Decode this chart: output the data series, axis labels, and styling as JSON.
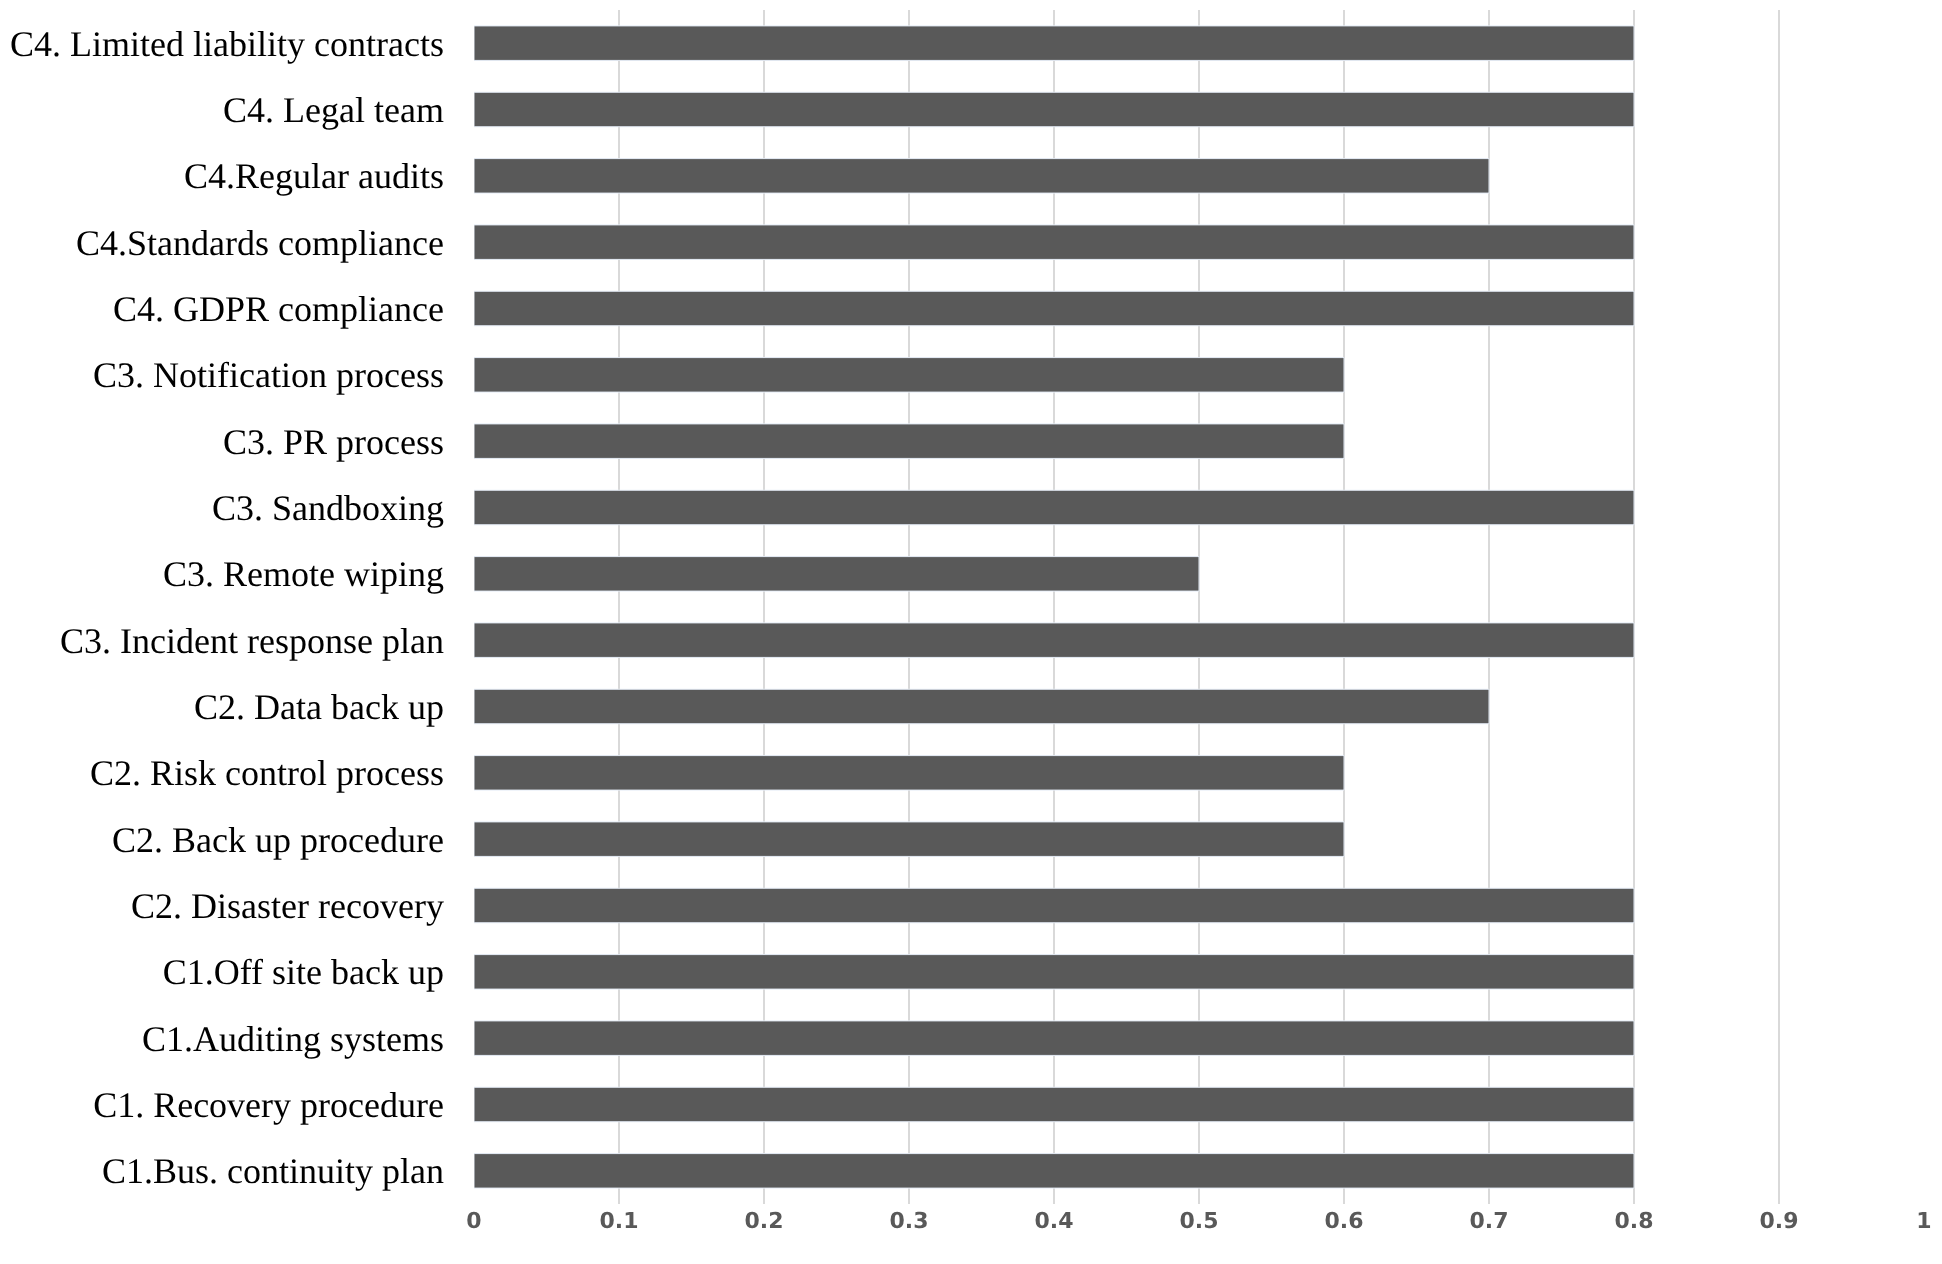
{
  "chart_data": {
    "type": "bar",
    "orientation": "horizontal",
    "categories": [
      "C4. Limited liability contracts",
      "C4. Legal team",
      "C4.Regular audits",
      "C4.Standards compliance",
      "C4. GDPR compliance",
      "C3. Notification process",
      "C3. PR process",
      "C3. Sandboxing",
      "C3. Remote wiping",
      "C3. Incident response plan",
      "C2. Data back up",
      "C2. Risk control process",
      "C2. Back up procedure",
      "C2. Disaster recovery",
      "C1.Off site back up",
      "C1.Auditing systems",
      "C1. Recovery procedure",
      "C1.Bus. continuity plan"
    ],
    "values": [
      0.8,
      0.8,
      0.7,
      0.8,
      0.8,
      0.6,
      0.6,
      0.8,
      0.5,
      0.8,
      0.7,
      0.6,
      0.6,
      0.8,
      0.8,
      0.8,
      0.8,
      0.8
    ],
    "color": "#595959",
    "xlim": [
      0,
      1
    ],
    "xticks": [
      0,
      0.1,
      0.2,
      0.3,
      0.4,
      0.5,
      0.6,
      0.7,
      0.8,
      0.9,
      1
    ],
    "grid": "x"
  }
}
